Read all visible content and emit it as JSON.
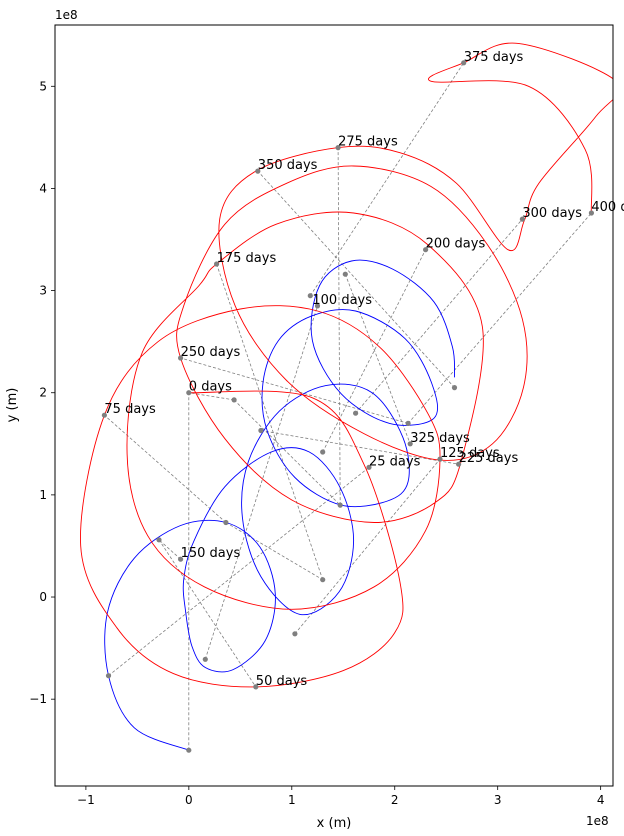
{
  "chart_data": {
    "type": "line",
    "xlabel": "x (m)",
    "ylabel": "y (m)",
    "x_multiplier_label": "1e8",
    "y_multiplier_label": "1e8",
    "scale": 100000000,
    "xlim": [
      -1.3,
      4.12
    ],
    "ylim": [
      -1.85,
      5.6
    ],
    "x_ticks": [
      -1,
      0,
      1,
      2,
      3,
      4
    ],
    "y_ticks": [
      -1,
      0,
      1,
      2,
      3,
      4,
      5
    ],
    "x_tick_labels": [
      "−1",
      "0",
      "1",
      "2",
      "3",
      "4"
    ],
    "y_tick_labels": [
      "−1",
      "0",
      "1",
      "2",
      "3",
      "4",
      "5"
    ],
    "grid": false,
    "legend": "none",
    "colors": {
      "inner": "#0000ff",
      "outer": "#ff0000",
      "connector": "#808080",
      "marker": "#7f7f7f"
    },
    "series": [
      {
        "values": [
          [
            0.0,
            -1.5
          ],
          [
            -0.53,
            -1.28
          ],
          [
            -0.78,
            -0.77
          ],
          [
            -0.79,
            -0.15
          ],
          [
            -0.53,
            0.38
          ],
          [
            -0.08,
            0.7
          ],
          [
            0.36,
            0.73
          ],
          [
            0.69,
            0.49
          ],
          [
            0.84,
            0.03
          ],
          [
            0.74,
            -0.43
          ],
          [
            0.43,
            -0.71
          ],
          [
            0.16,
            -0.69
          ],
          [
            0.03,
            -0.48
          ],
          [
            -0.03,
            -0.15
          ],
          [
            -0.05,
            0.17
          ],
          [
            0.05,
            0.55
          ],
          [
            0.35,
            1.08
          ],
          [
            0.8,
            1.42
          ],
          [
            1.17,
            1.42
          ],
          [
            1.47,
            1.07
          ],
          [
            1.6,
            0.55
          ],
          [
            1.46,
            0.05
          ],
          [
            1.08,
            -0.17
          ],
          [
            0.7,
            0.2
          ],
          [
            0.52,
            0.78
          ],
          [
            0.58,
            1.33
          ],
          [
            0.88,
            1.82
          ],
          [
            1.33,
            2.07
          ],
          [
            1.78,
            2.0
          ],
          [
            2.08,
            1.56
          ],
          [
            2.13,
            1.13
          ],
          [
            1.93,
            0.94
          ],
          [
            1.48,
            0.9
          ],
          [
            1.03,
            1.17
          ],
          [
            0.76,
            1.63
          ],
          [
            0.72,
            2.1
          ],
          [
            0.87,
            2.51
          ],
          [
            1.19,
            2.75
          ],
          [
            1.62,
            2.8
          ],
          [
            2.1,
            2.53
          ],
          [
            2.36,
            2.09
          ],
          [
            2.38,
            1.75
          ],
          [
            1.95,
            1.7
          ],
          [
            1.48,
            1.99
          ],
          [
            1.2,
            2.51
          ],
          [
            1.27,
            3.05
          ],
          [
            1.58,
            3.29
          ],
          [
            1.98,
            3.21
          ],
          [
            2.38,
            2.89
          ],
          [
            2.56,
            2.45
          ],
          [
            2.58,
            2.15
          ]
        ]
      },
      {
        "values": [
          [
            0.0,
            2.0
          ],
          [
            1.2,
            1.95
          ],
          [
            1.7,
            1.3
          ],
          [
            2.05,
            0.15
          ],
          [
            2.0,
            -0.35
          ],
          [
            1.5,
            -0.72
          ],
          [
            0.65,
            -0.88
          ],
          [
            -0.15,
            -0.75
          ],
          [
            -0.7,
            -0.3
          ],
          [
            -1.05,
            0.5
          ],
          [
            -0.82,
            1.78
          ],
          [
            -0.3,
            2.5
          ],
          [
            0.5,
            2.82
          ],
          [
            1.25,
            2.8
          ],
          [
            1.85,
            2.45
          ],
          [
            2.32,
            1.8
          ],
          [
            2.44,
            1.35
          ],
          [
            2.3,
            0.65
          ],
          [
            1.8,
            0.1
          ],
          [
            1.0,
            -0.12
          ],
          [
            0.15,
            0.1
          ],
          [
            -0.4,
            0.6
          ],
          [
            -0.6,
            1.4
          ],
          [
            -0.45,
            2.4
          ],
          [
            0.1,
            3.05
          ],
          [
            0.27,
            3.26
          ],
          [
            0.85,
            3.65
          ],
          [
            1.6,
            3.76
          ],
          [
            2.32,
            3.45
          ],
          [
            2.85,
            2.65
          ],
          [
            2.65,
            1.35
          ],
          [
            2.4,
            0.93
          ],
          [
            1.8,
            0.73
          ],
          [
            1.0,
            0.95
          ],
          [
            0.35,
            1.55
          ],
          [
            -0.08,
            2.34
          ],
          [
            -0.05,
            2.85
          ],
          [
            0.35,
            3.65
          ],
          [
            0.95,
            4.05
          ],
          [
            1.6,
            4.22
          ],
          [
            2.35,
            4.02
          ],
          [
            2.9,
            3.45
          ],
          [
            3.24,
            2.72
          ],
          [
            3.25,
            2.05
          ],
          [
            2.95,
            1.5
          ],
          [
            2.44,
            1.34
          ],
          [
            1.7,
            1.6
          ],
          [
            0.95,
            2.12
          ],
          [
            0.45,
            2.85
          ],
          [
            0.3,
            3.7
          ],
          [
            0.65,
            4.17
          ],
          [
            1.45,
            4.4
          ],
          [
            2.05,
            4.35
          ],
          [
            2.6,
            4.05
          ],
          [
            3.1,
            3.4
          ],
          [
            3.26,
            3.69
          ],
          [
            3.4,
            4.05
          ],
          [
            3.95,
            4.7
          ],
          [
            4.15,
            5.05
          ],
          [
            3.2,
            5.42
          ],
          [
            2.67,
            5.23
          ],
          [
            2.35,
            5.05
          ],
          [
            3.3,
            5.0
          ],
          [
            3.85,
            4.38
          ],
          [
            3.91,
            3.76
          ]
        ]
      }
    ],
    "markers_inner": [
      [
        0.0,
        -1.5
      ],
      [
        -0.78,
        -0.77
      ],
      [
        -0.29,
        0.56
      ],
      [
        0.36,
        0.73
      ],
      [
        1.03,
        -0.36
      ],
      [
        0.16,
        -0.61
      ],
      [
        -0.08,
        0.37
      ],
      [
        1.3,
        0.17
      ],
      [
        1.3,
        1.42
      ],
      [
        0.7,
        1.63
      ],
      [
        1.47,
        0.9
      ],
      [
        2.13,
        1.7
      ],
      [
        1.62,
        1.8
      ],
      [
        1.52,
        3.16
      ],
      [
        2.58,
        2.05
      ],
      [
        1.18,
        2.95
      ]
    ],
    "markers_outer": [
      [
        0.0,
        2.0
      ],
      [
        0.44,
        1.93
      ],
      [
        0.65,
        -0.88
      ],
      [
        -0.82,
        1.78
      ],
      [
        1.25,
        2.85
      ],
      [
        1.75,
        1.27
      ],
      [
        2.3,
        3.4
      ],
      [
        2.44,
        1.35
      ],
      [
        2.62,
        1.3
      ],
      [
        -0.08,
        2.34
      ],
      [
        0.27,
        3.26
      ],
      [
        1.45,
        4.4
      ],
      [
        3.24,
        3.7
      ],
      [
        2.15,
        1.5
      ],
      [
        0.67,
        4.17
      ],
      [
        2.67,
        5.23
      ],
      [
        3.91,
        3.76
      ]
    ],
    "connectors": [
      [
        [
          0.0,
          -1.5
        ],
        [
          0.0,
          2.0
        ]
      ],
      [
        [
          -0.78,
          -0.77
        ],
        [
          1.75,
          1.27
        ]
      ],
      [
        [
          -0.29,
          0.56
        ],
        [
          0.65,
          -0.88
        ]
      ],
      [
        [
          0.36,
          0.73
        ],
        [
          -0.82,
          1.78
        ]
      ],
      [
        [
          1.03,
          -0.36
        ],
        [
          2.44,
          1.35
        ]
      ],
      [
        [
          0.16,
          -0.61
        ],
        [
          1.25,
          2.85
        ]
      ],
      [
        [
          -0.08,
          0.37
        ],
        [
          -0.29,
          0.56
        ]
      ],
      [
        [
          1.3,
          0.17
        ],
        [
          0.27,
          3.26
        ]
      ],
      [
        [
          1.3,
          1.42
        ],
        [
          2.3,
          3.4
        ]
      ],
      [
        [
          0.7,
          1.63
        ],
        [
          2.62,
          1.3
        ]
      ],
      [
        [
          1.47,
          0.9
        ],
        [
          1.45,
          4.4
        ]
      ],
      [
        [
          2.13,
          1.7
        ],
        [
          -0.08,
          2.34
        ]
      ],
      [
        [
          1.62,
          1.8
        ],
        [
          3.24,
          3.7
        ]
      ],
      [
        [
          1.52,
          3.16
        ],
        [
          2.15,
          1.5
        ]
      ],
      [
        [
          2.58,
          2.05
        ],
        [
          0.67,
          4.17
        ]
      ],
      [
        [
          1.18,
          2.95
        ],
        [
          2.67,
          5.23
        ]
      ],
      [
        [
          0.44,
          1.93
        ],
        [
          0.0,
          2.0
        ]
      ],
      [
        [
          0.44,
          1.93
        ],
        [
          1.47,
          0.9
        ]
      ],
      [
        [
          0.36,
          0.73
        ],
        [
          1.3,
          0.17
        ]
      ],
      [
        [
          2.13,
          1.7
        ],
        [
          3.91,
          3.76
        ]
      ]
    ],
    "annotations": [
      {
        "label": "0 days",
        "x": 0.0,
        "y": 2.0
      },
      {
        "label": "25 days",
        "x": 1.75,
        "y": 1.27
      },
      {
        "label": "50 days",
        "x": 0.65,
        "y": -0.88
      },
      {
        "label": "75 days",
        "x": -0.82,
        "y": 1.78
      },
      {
        "label": "100 days",
        "x": 1.2,
        "y": 2.85
      },
      {
        "label": "125 days",
        "x": 2.44,
        "y": 1.35
      },
      {
        "label": "150 days",
        "x": -0.08,
        "y": 0.37
      },
      {
        "label": "175 days",
        "x": 0.27,
        "y": 3.26
      },
      {
        "label": "200 days",
        "x": 2.3,
        "y": 3.4
      },
      {
        "label": "225 days",
        "x": 2.62,
        "y": 1.3
      },
      {
        "label": "250 days",
        "x": -0.08,
        "y": 2.34
      },
      {
        "label": "275 days",
        "x": 1.45,
        "y": 4.4
      },
      {
        "label": "300 days",
        "x": 3.24,
        "y": 3.7
      },
      {
        "label": "325 days",
        "x": 2.15,
        "y": 1.5
      },
      {
        "label": "350 days",
        "x": 0.67,
        "y": 4.17
      },
      {
        "label": "375 days",
        "x": 2.67,
        "y": 5.23
      },
      {
        "label": "400 days",
        "x": 3.91,
        "y": 3.76
      }
    ]
  }
}
